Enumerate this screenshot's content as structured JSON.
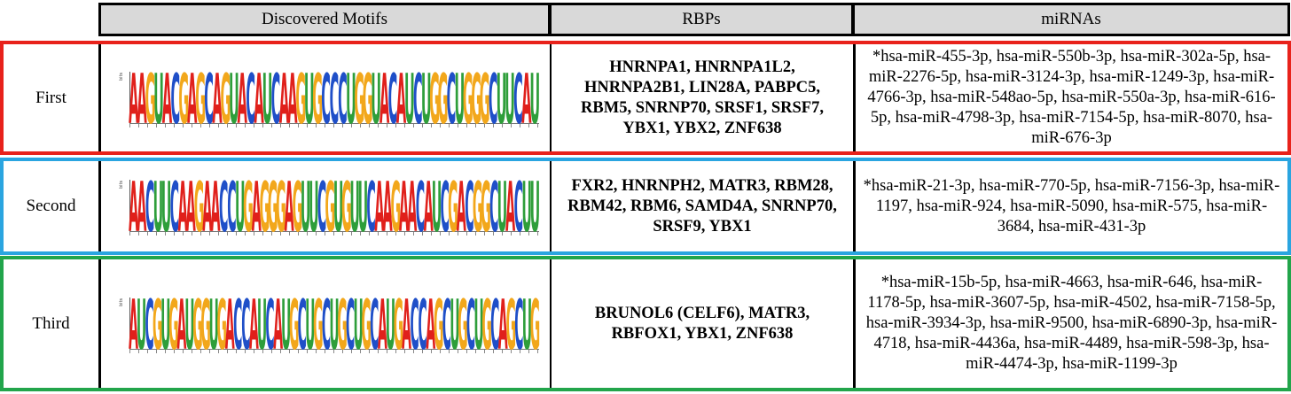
{
  "header": {
    "motifs": "Discovered Motifs",
    "rbps": "RBPs",
    "mirnas": "miRNAs"
  },
  "rows": [
    {
      "label": "First",
      "sequence": "AAGUACGAGCAGUACAUCAAGUGCCCUGGUACAUCUGGCUGGGCUUCAU",
      "rbps": "HNRNPA1,  HNRNPA1L2, HNRNPA2B1,  LIN28A, PABPC5, RBM5, SNRNP70, SRSF1,  SRSF7, YBX1, YBX2, ZNF638",
      "mirnas": "*hsa-miR-455-3p, hsa-miR-550b-3p, hsa-miR-302a-5p, hsa-miR-2276-5p, hsa-miR-3124-3p, hsa-miR-1249-3p, hsa-miR-4766-3p, hsa-miR-548ao-5p, hsa-miR-550a-3p, hsa-miR-616-5p, hsa-miR-4798-3p, hsa-miR-7154-5p, hsa-miR-8070, hsa-miR-676-3p"
    },
    {
      "label": "Second",
      "sequence": "AACUUCAAGAACCUGAGGGAGUUCGUGUUCAAGAACAUCGACGGCUACUU",
      "rbps": "FXR2, HNRNPH2, MATR3, RBM28, RBM42, RBM6, SAMD4A, SNRNP70, SRSF9, YBX1",
      "mirnas": "*hsa-miR-21-3p, hsa-miR-770-5p, hsa-miR-7156-3p, hsa-miR-1197, hsa-miR-924, hsa-miR-5090, hsa-miR-575, hsa-miR-3684, hsa-miR-431-3p"
    },
    {
      "label": "Third",
      "sequence": "AUCGUGAUGGUGACCAUCAUGCUGCUGCUGCAUGACCAGCUGCUGCAGCUG",
      "rbps": "BRUNOL6 (CELF6), MATR3, RBFOX1, YBX1, ZNF638",
      "mirnas": "*hsa-miR-15b-5p, hsa-miR-4663, hsa-miR-646, hsa-miR-1178-5p, hsa-miR-3607-5p, hsa-miR-4502, hsa-miR-7158-5p, hsa-miR-3934-3p, hsa-miR-9500, hsa-miR-6890-3p, hsa-miR-4718, hsa-miR-4436a, hsa-miR-4489, hsa-miR-598-3p, hsa-miR-4474-3p, hsa-miR-1199-3p"
    }
  ],
  "logo_axis_label": "bits",
  "nucleotide_colors": {
    "A": "#e0201b",
    "C": "#1f4fc8",
    "G": "#f2a71b",
    "U": "#2e9e3a"
  }
}
